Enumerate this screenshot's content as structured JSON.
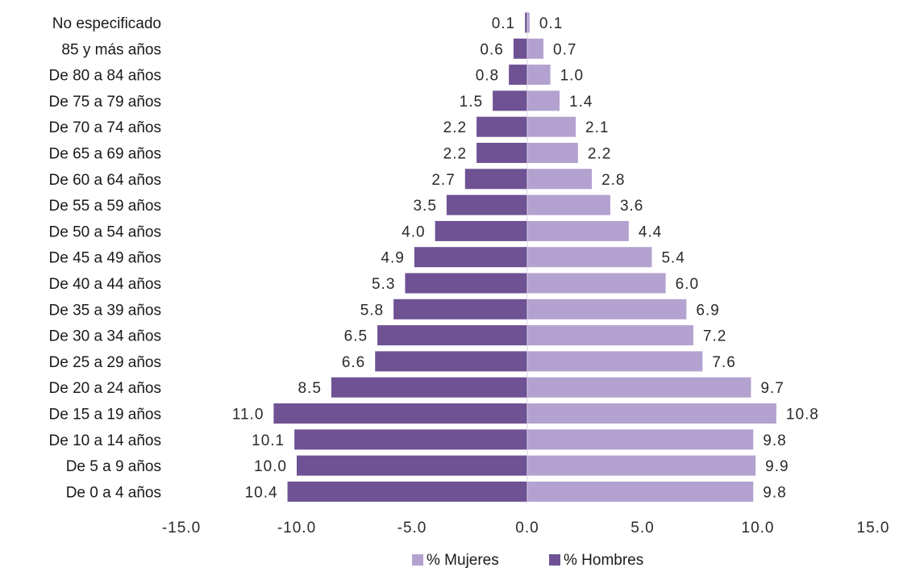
{
  "chart_data": {
    "type": "bar",
    "orientation": "horizontal",
    "categories": [
      "No especificado",
      "85 y más años",
      "De 80 a 84 años",
      "De 75 a 79 años",
      "De 70 a 74 años",
      "De 65 a 69 años",
      "De 60 a 64 años",
      "De 55 a 59 años",
      "De 50 a 54 años",
      "De 45 a 49 años",
      "De 40 a 44 años",
      "De 35 a 39 años",
      "De 30 a 34 años",
      "De 25 a 29 años",
      "De 20 a 24 años",
      "De 15 a 19 años",
      "De 10 a 14 años",
      "De 5 a 9 años",
      "De 0 a 4 años"
    ],
    "series": [
      {
        "name": "% Hombres",
        "color": "#6e5294",
        "values": [
          -0.1,
          -0.6,
          -0.8,
          -1.5,
          -2.2,
          -2.2,
          -2.7,
          -3.5,
          -4.0,
          -4.9,
          -5.3,
          -5.8,
          -6.5,
          -6.6,
          -8.5,
          -11.0,
          -10.1,
          -10.0,
          -10.4
        ],
        "labels": [
          "0.1",
          "0.6",
          "0.8",
          "1.5",
          "2.2",
          "2.2",
          "2.7",
          "3.5",
          "4.0",
          "4.9",
          "5.3",
          "5.8",
          "6.5",
          "6.6",
          "8.5",
          "11.0",
          "10.1",
          "10.0",
          "10.4"
        ]
      },
      {
        "name": "% Mujeres",
        "color": "#b3a2d0",
        "values": [
          0.1,
          0.7,
          1.0,
          1.4,
          2.1,
          2.2,
          2.8,
          3.6,
          4.4,
          5.4,
          6.0,
          6.9,
          7.2,
          7.6,
          9.7,
          10.8,
          9.8,
          9.9,
          9.8
        ],
        "labels": [
          "0.1",
          "0.7",
          "1.0",
          "1.4",
          "2.1",
          "2.2",
          "2.8",
          "3.6",
          "4.4",
          "5.4",
          "6.0",
          "6.9",
          "7.2",
          "7.6",
          "9.7",
          "10.8",
          "9.8",
          "9.9",
          "9.8"
        ]
      }
    ],
    "xlim": [
      -15,
      15
    ],
    "x_ticks": [
      -15,
      -10,
      -5,
      0,
      5,
      10,
      15
    ],
    "x_tick_labels": [
      "-15.0",
      "-10.0",
      "-5.0",
      "0.0",
      "5.0",
      "10.0",
      "15.0"
    ],
    "grid": false,
    "legend_position": "bottom-center",
    "legend": [
      "% Mujeres",
      "% Hombres"
    ],
    "title": "",
    "xlabel": "",
    "ylabel": ""
  }
}
